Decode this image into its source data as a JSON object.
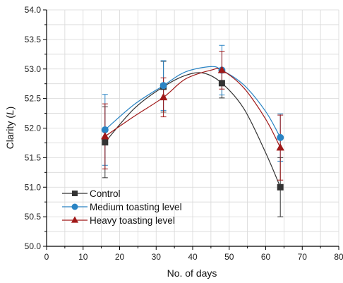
{
  "chart_data": {
    "type": "scatter",
    "xlabel": "No. of days",
    "ylabel_prefix": "Clarity (",
    "ylabel_var": "L",
    "ylabel_suffix": ")",
    "xlim": [
      0,
      80
    ],
    "ylim": [
      50.0,
      54.0
    ],
    "x_ticks": [
      0,
      10,
      20,
      30,
      40,
      50,
      60,
      70,
      80
    ],
    "y_ticks": [
      50.0,
      50.5,
      51.0,
      51.5,
      52.0,
      52.5,
      53.0,
      53.5,
      54.0
    ],
    "grid": true,
    "legend_position": "bottom-left",
    "series": [
      {
        "name": "Control",
        "color": "#333333",
        "marker": "square",
        "x": [
          16,
          32,
          48,
          64
        ],
        "y": [
          51.76,
          52.7,
          52.76,
          51.0
        ],
        "err": [
          0.6,
          0.43,
          0.25,
          0.5
        ],
        "curve": [
          [
            16,
            51.76
          ],
          [
            24,
            52.33
          ],
          [
            32,
            52.7
          ],
          [
            38,
            52.89
          ],
          [
            43,
            52.93
          ],
          [
            48,
            52.76
          ],
          [
            54,
            52.33
          ],
          [
            60,
            51.58
          ],
          [
            64,
            51.0
          ]
        ]
      },
      {
        "name": "Medium toasting level",
        "color": "#2a84c4",
        "marker": "circle",
        "x": [
          16,
          32,
          48,
          64
        ],
        "y": [
          51.97,
          52.72,
          52.98,
          51.84
        ],
        "err": [
          0.6,
          0.42,
          0.42,
          0.4
        ],
        "curve": [
          [
            16,
            51.97
          ],
          [
            24,
            52.4
          ],
          [
            32,
            52.72
          ],
          [
            38,
            52.95
          ],
          [
            45,
            53.04
          ],
          [
            48,
            52.98
          ],
          [
            54,
            52.73
          ],
          [
            60,
            52.28
          ],
          [
            64,
            51.84
          ]
        ]
      },
      {
        "name": "Heavy toasting level",
        "color": "#a01818",
        "marker": "triangle",
        "x": [
          16,
          32,
          48,
          64
        ],
        "y": [
          51.86,
          52.52,
          52.98,
          51.67
        ],
        "err": [
          0.55,
          0.33,
          0.32,
          0.55
        ],
        "curve": [
          [
            16,
            51.86
          ],
          [
            24,
            52.2
          ],
          [
            32,
            52.52
          ],
          [
            38,
            52.83
          ],
          [
            45,
            52.98
          ],
          [
            48,
            52.98
          ],
          [
            54,
            52.68
          ],
          [
            60,
            52.15
          ],
          [
            64,
            51.67
          ]
        ]
      }
    ]
  }
}
